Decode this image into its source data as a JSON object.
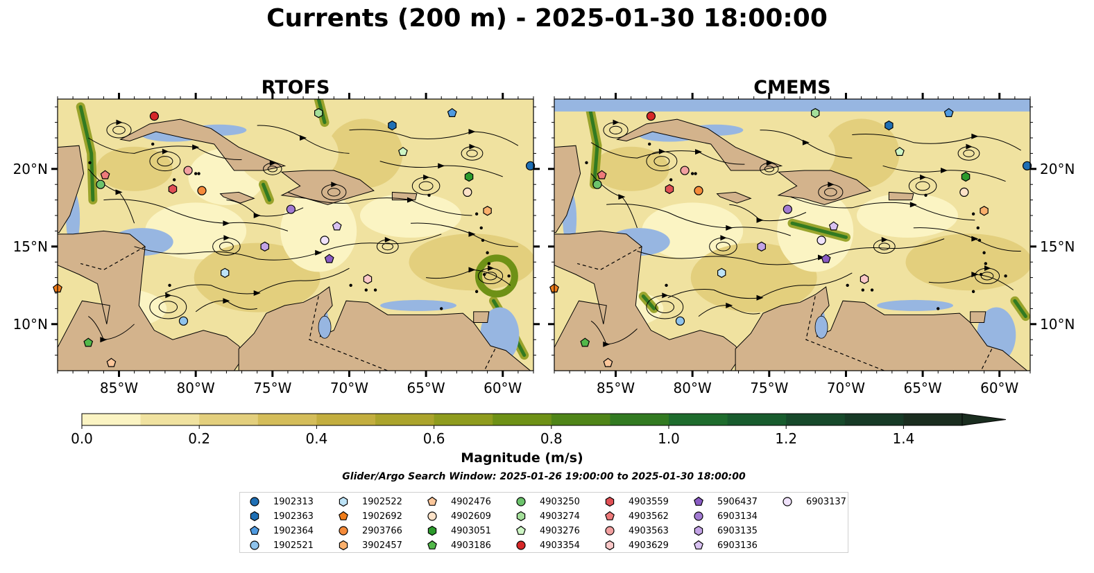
{
  "title": "Currents (200 m) - 2025-01-30 18:00:00",
  "panels": [
    {
      "title": "RTOFS"
    },
    {
      "title": "CMEMS"
    }
  ],
  "chart_data": {
    "type": "map-contourf-streamlines",
    "lon_range": [
      -89,
      -58
    ],
    "lat_range": [
      7,
      24.5
    ],
    "x_ticks": [
      -85,
      -80,
      -75,
      -70,
      -65,
      -60
    ],
    "x_tick_labels": [
      "85°W",
      "80°W",
      "75°W",
      "70°W",
      "65°W",
      "60°W"
    ],
    "y_ticks": [
      10,
      15,
      20
    ],
    "y_tick_labels": [
      "10°N",
      "15°N",
      "20°N"
    ],
    "colorbar": {
      "label": "Magnitude (m/s)",
      "min": 0.0,
      "max": 1.5,
      "step": 0.1,
      "ticks": [
        0.0,
        0.2,
        0.4,
        0.6,
        0.8,
        1.0,
        1.2,
        1.4
      ],
      "tick_labels": [
        "0.0",
        "0.2",
        "0.4",
        "0.6",
        "0.8",
        "1.0",
        "1.2",
        "1.4"
      ],
      "extend": "max",
      "colors": [
        "#fbf4c3",
        "#f0e2a0",
        "#e3cf7d",
        "#d4bd5a",
        "#c3ae3f",
        "#aba42c",
        "#8f9c1e",
        "#6e9116",
        "#4f8518",
        "#327a21",
        "#1e6c2d",
        "#185c2e",
        "#17492b",
        "#173a26",
        "#1a2d1f"
      ]
    },
    "land_color": "#d3b38c",
    "ocean_color": "#97b6e1",
    "floats": [
      {
        "id": "1902313",
        "lon": -58.2,
        "lat": 20.2,
        "marker": "circle",
        "color": "#1f6fb4"
      },
      {
        "id": "1902363",
        "lon": -67.2,
        "lat": 22.8,
        "marker": "hexagon",
        "color": "#1f6fb4"
      },
      {
        "id": "1902364",
        "lon": -63.3,
        "lat": 23.6,
        "marker": "pentagon",
        "color": "#4f9ae0"
      },
      {
        "id": "1902521",
        "lon": -80.8,
        "lat": 10.2,
        "marker": "circle",
        "color": "#8fc3ec"
      },
      {
        "id": "1902522",
        "lon": -78.1,
        "lat": 13.3,
        "marker": "hexagon",
        "color": "#bde3f7"
      },
      {
        "id": "1902692",
        "lon": -89.0,
        "lat": 12.3,
        "marker": "pentagon",
        "color": "#f07d1a"
      },
      {
        "id": "2903766",
        "lon": -79.6,
        "lat": 18.6,
        "marker": "circle",
        "color": "#f58b3a"
      },
      {
        "id": "3902457",
        "lon": -61.0,
        "lat": 17.3,
        "marker": "hexagon",
        "color": "#fbb06c"
      },
      {
        "id": "4902476",
        "lon": -85.5,
        "lat": 7.5,
        "marker": "pentagon",
        "color": "#fcc79b"
      },
      {
        "id": "4902609",
        "lon": -62.3,
        "lat": 18.5,
        "marker": "circle",
        "color": "#fde2c8"
      },
      {
        "id": "4903051",
        "lon": -62.2,
        "lat": 19.5,
        "marker": "hexagon",
        "color": "#2c9a2c"
      },
      {
        "id": "4903186",
        "lon": -87.0,
        "lat": 8.8,
        "marker": "pentagon",
        "color": "#52b84a"
      },
      {
        "id": "4903250",
        "lon": -86.2,
        "lat": 19.0,
        "marker": "circle",
        "color": "#6cc36c"
      },
      {
        "id": "4903274",
        "lon": -72.0,
        "lat": 23.6,
        "marker": "hexagon",
        "color": "#a4df9a"
      },
      {
        "id": "4903276",
        "lon": -66.5,
        "lat": 21.1,
        "marker": "pentagon",
        "color": "#cdf5c4"
      },
      {
        "id": "4903354",
        "lon": -82.7,
        "lat": 23.4,
        "marker": "circle",
        "color": "#d62728"
      },
      {
        "id": "4903559",
        "lon": -81.5,
        "lat": 18.7,
        "marker": "hexagon",
        "color": "#e05055"
      },
      {
        "id": "4903562",
        "lon": -85.9,
        "lat": 19.6,
        "marker": "pentagon",
        "color": "#ee7a7a"
      },
      {
        "id": "4903563",
        "lon": -80.5,
        "lat": 19.9,
        "marker": "circle",
        "color": "#f2a0a0"
      },
      {
        "id": "4903629",
        "lon": -68.8,
        "lat": 12.9,
        "marker": "hexagon",
        "color": "#fbc8c8"
      },
      {
        "id": "5906437",
        "lon": -71.3,
        "lat": 14.2,
        "marker": "pentagon",
        "color": "#8a5cc4"
      },
      {
        "id": "6903134",
        "lon": -73.8,
        "lat": 17.4,
        "marker": "circle",
        "color": "#a27bd2"
      },
      {
        "id": "6903135",
        "lon": -75.5,
        "lat": 15.0,
        "marker": "hexagon",
        "color": "#c3a3e6"
      },
      {
        "id": "6903136",
        "lon": -70.8,
        "lat": 16.3,
        "marker": "pentagon",
        "color": "#d9c2f2"
      },
      {
        "id": "6903137",
        "lon": -71.6,
        "lat": 15.4,
        "marker": "circle",
        "color": "#f0e2fb"
      }
    ]
  },
  "subtitle": "Glider/Argo Search Window: 2025-01-26 19:00:00 to 2025-01-30 18:00:00"
}
